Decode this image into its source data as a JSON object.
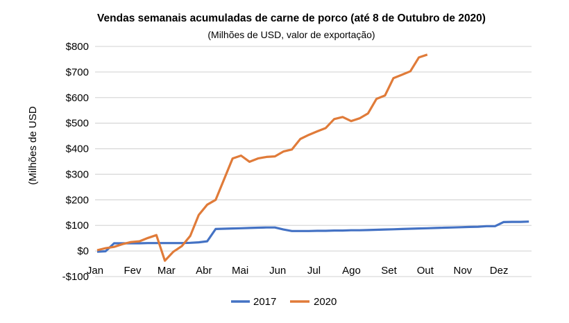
{
  "chart_data": {
    "type": "line",
    "title": "Vendas semanais acumuladas de carne de porco (até 8 de Outubro de 2020)",
    "subtitle": "(Milhões de USD, valor de exportação)",
    "xlabel": "",
    "ylabel": "(Milhões de USD",
    "x_unit": "week of year",
    "ylim": [
      -100,
      800
    ],
    "yticks": [
      800,
      700,
      600,
      500,
      400,
      300,
      200,
      100,
      0,
      -100
    ],
    "ytick_labels": [
      "$800",
      "$700",
      "$600",
      "$500",
      "$400",
      "$300",
      "$200",
      "$100",
      "$0",
      "-$100"
    ],
    "xtick_labels": [
      "Jan",
      "Fev",
      "Mar",
      "Abr",
      "Mai",
      "Jun",
      "Jul",
      "Ago",
      "Set",
      "Out",
      "Nov",
      "Dez"
    ],
    "grid": true,
    "legend_position": "bottom",
    "series": [
      {
        "name": "2017",
        "color": "#4472C4",
        "values": [
          -3,
          -1,
          30,
          30,
          30,
          30,
          31,
          31,
          31,
          31,
          31,
          32,
          34,
          38,
          86,
          87,
          88,
          89,
          90,
          91,
          92,
          92,
          84,
          78,
          78,
          78,
          79,
          79,
          80,
          80,
          81,
          81,
          82,
          83,
          84,
          85,
          86,
          87,
          88,
          89,
          90,
          91,
          92,
          93,
          94,
          95,
          97,
          97,
          113,
          114,
          114,
          115
        ]
      },
      {
        "name": "2020",
        "color": "#E07B39",
        "values": [
          3,
          11,
          16,
          27,
          35,
          38,
          51,
          62,
          -38,
          -3,
          19,
          59,
          141,
          181,
          200,
          281,
          362,
          373,
          349,
          362,
          368,
          370,
          389,
          397,
          438,
          454,
          468,
          481,
          516,
          524,
          508,
          519,
          538,
          595,
          608,
          676,
          689,
          703,
          757,
          768
        ]
      }
    ]
  }
}
